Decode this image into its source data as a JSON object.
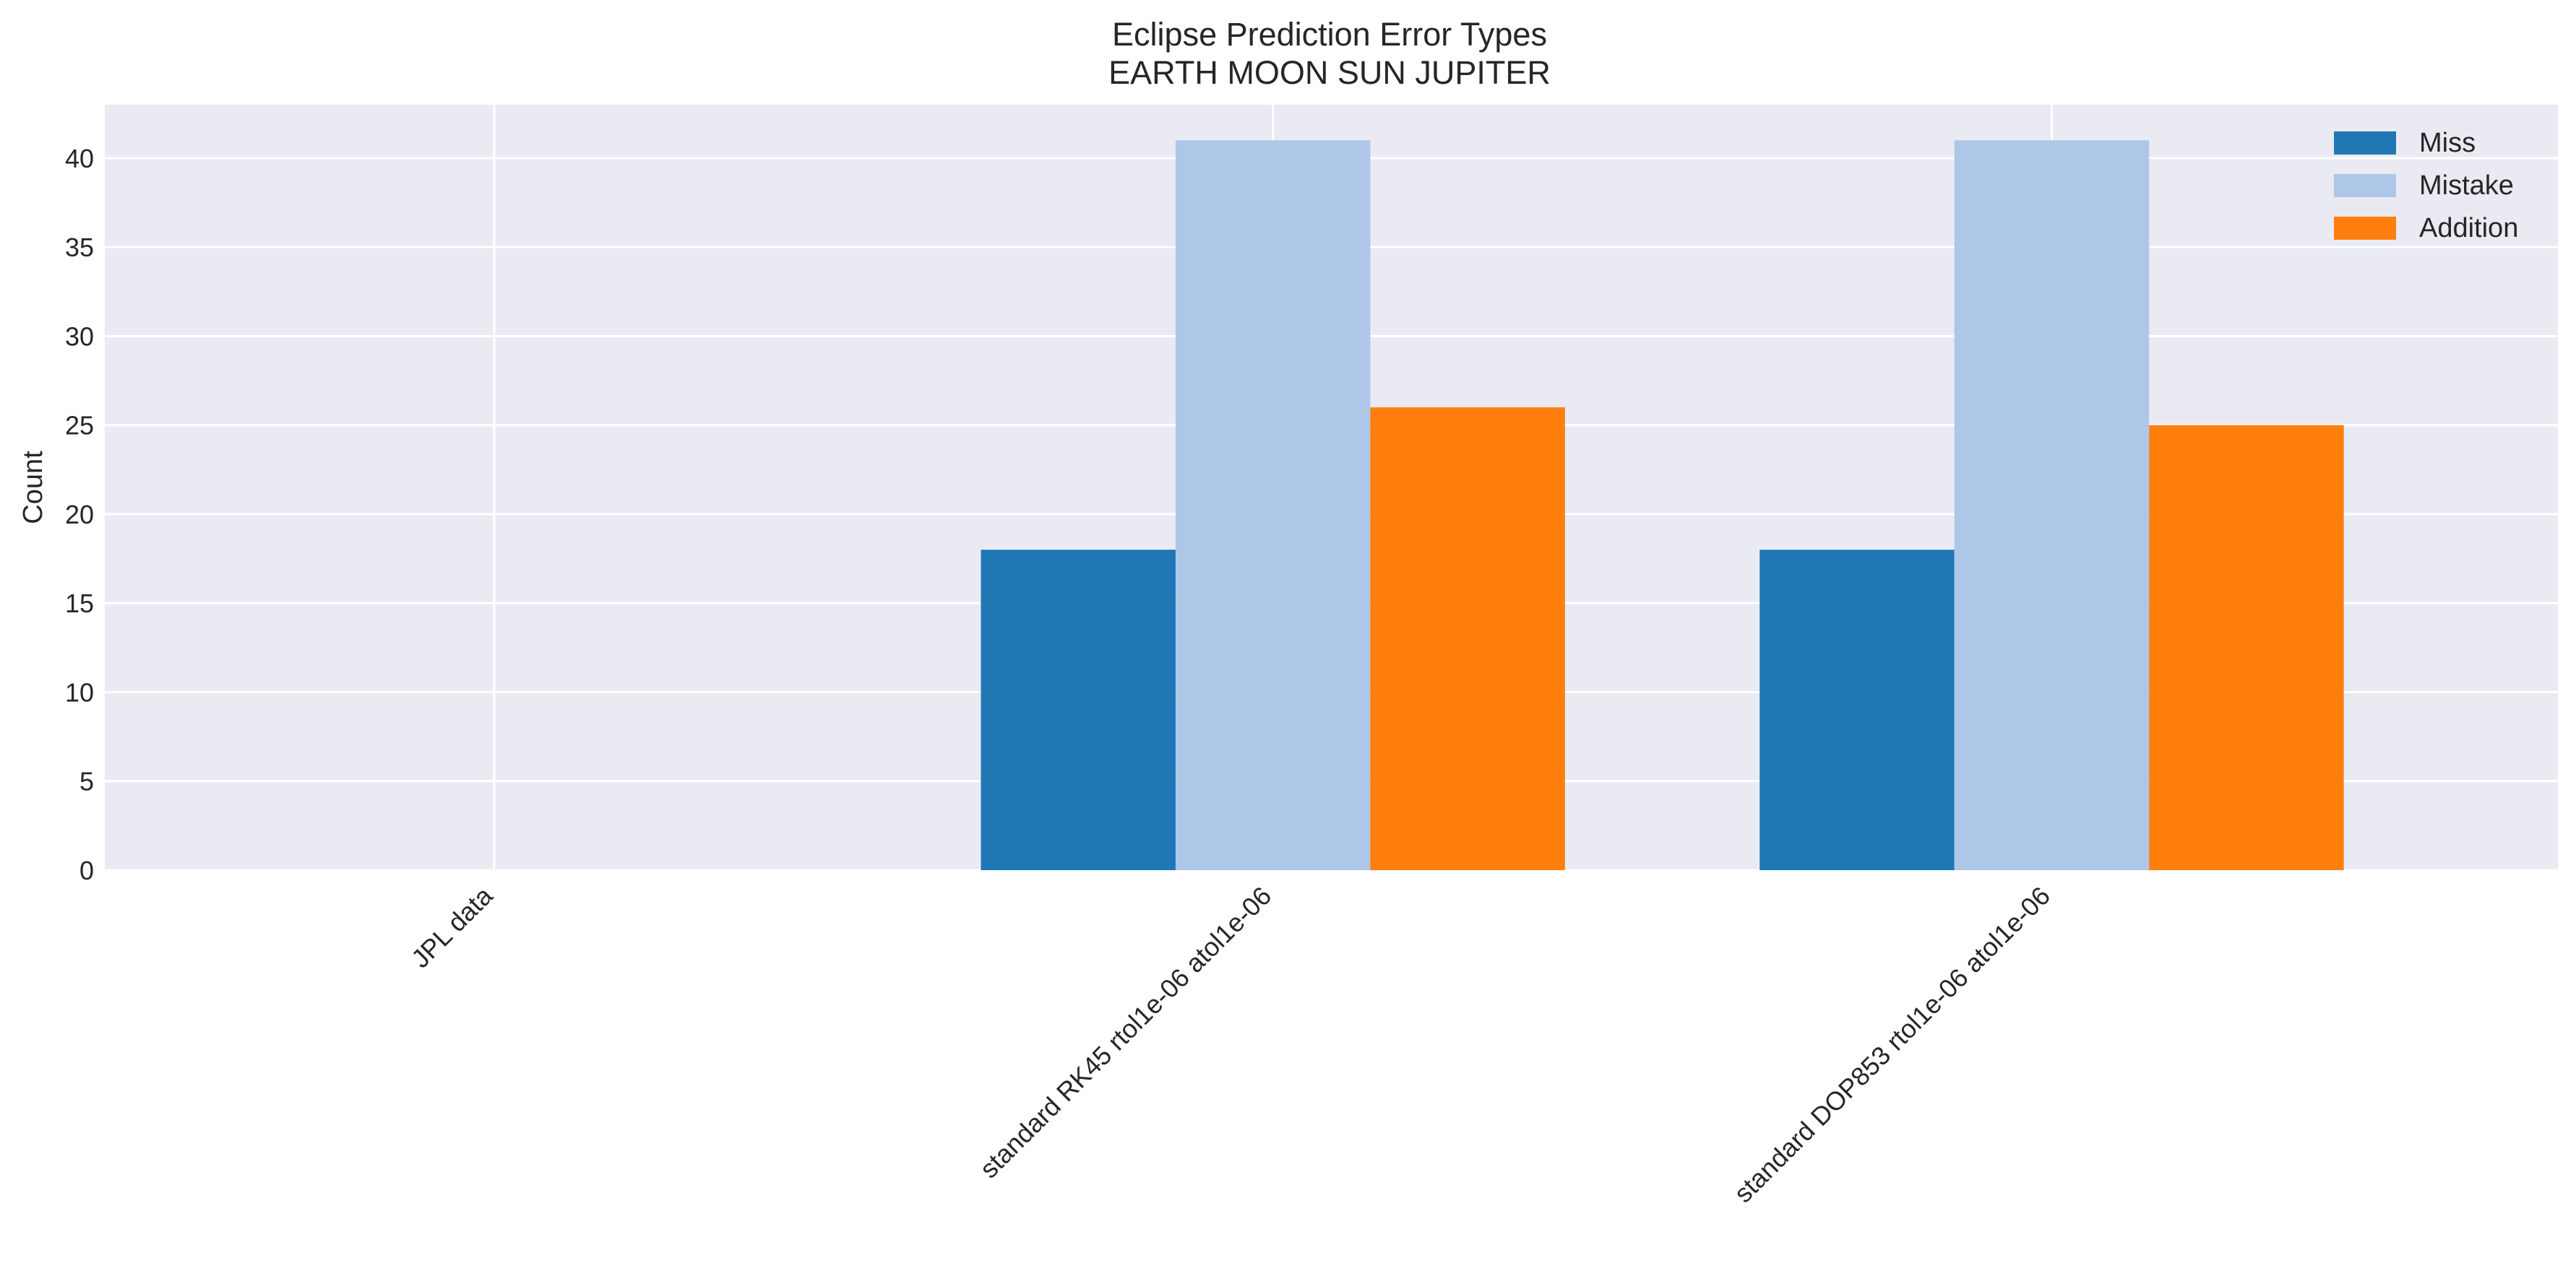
{
  "chart_data": {
    "type": "bar",
    "title": "Eclipse Prediction Error Types",
    "subtitle": "EARTH MOON SUN JUPITER",
    "xlabel": "",
    "ylabel": "Count",
    "ylim": [
      0,
      43
    ],
    "yticks": [
      0,
      5,
      10,
      15,
      20,
      25,
      30,
      35,
      40
    ],
    "grid": true,
    "legend_position": "top-right",
    "categories": [
      "JPL data",
      "standard RK45 rtol1e-06 atol1e-06",
      "standard DOP853 rtol1e-06 atol1e-06"
    ],
    "series": [
      {
        "name": "Miss",
        "color": "#1f77b4",
        "values": [
          0,
          18,
          18
        ]
      },
      {
        "name": "Mistake",
        "color": "#aec7e8",
        "values": [
          0,
          41,
          41
        ]
      },
      {
        "name": "Addition",
        "color": "#ff7f0e",
        "values": [
          0,
          26,
          25
        ]
      }
    ]
  }
}
